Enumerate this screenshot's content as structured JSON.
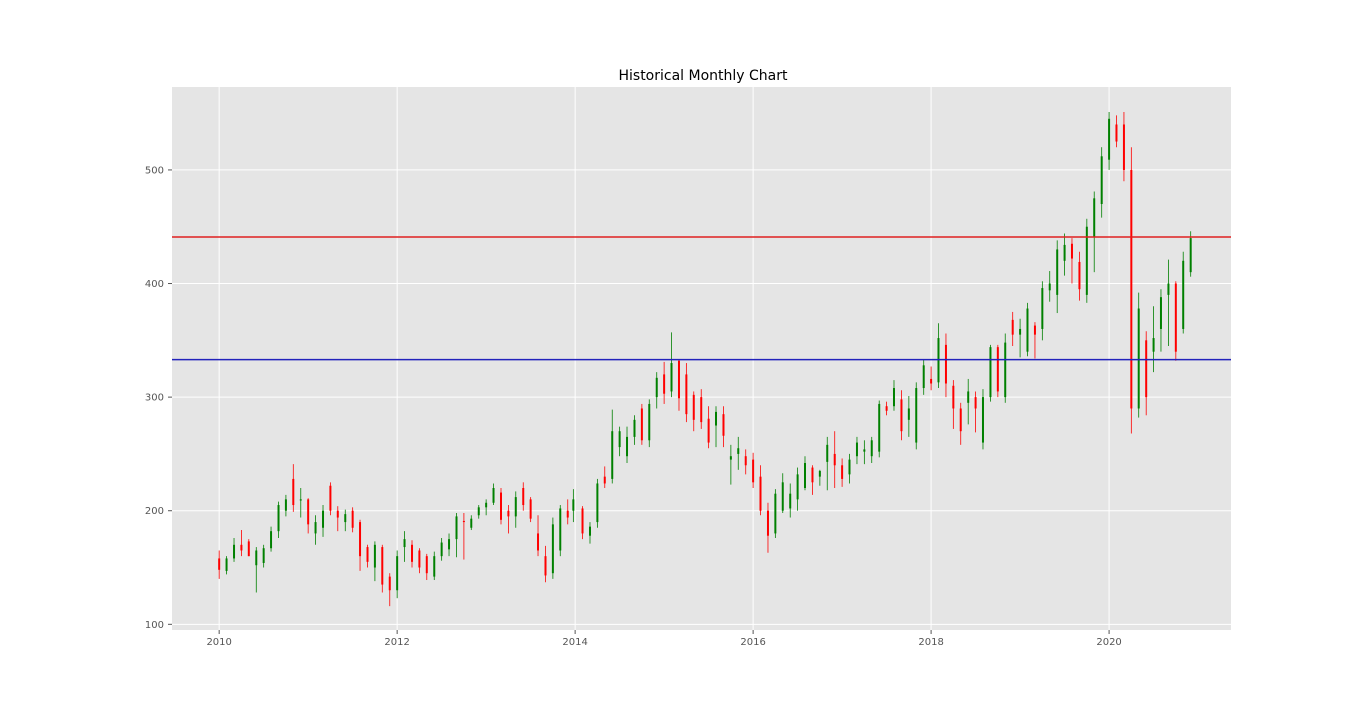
{
  "chart_data": {
    "type": "candlestick",
    "title": "Historical Monthly Chart",
    "xlabel": "",
    "ylabel": "",
    "xlim": [
      2009.47,
      2021.37
    ],
    "ylim": [
      95,
      573
    ],
    "grid": true,
    "x_ticks": [
      2010,
      2012,
      2014,
      2016,
      2018,
      2020
    ],
    "x_tick_labels": [
      "2010",
      "2012",
      "2014",
      "2016",
      "2018",
      "2020"
    ],
    "y_ticks": [
      100,
      200,
      300,
      400,
      500
    ],
    "y_tick_labels": [
      "100",
      "200",
      "300",
      "400",
      "500"
    ],
    "hlines": [
      {
        "y": 441,
        "color": "#e02020"
      },
      {
        "y": 333,
        "color": "#2222bb"
      }
    ],
    "colors": {
      "up": "#008000",
      "down": "#ff0000",
      "background": "#e5e5e5",
      "grid": "#ffffff"
    },
    "candles": [
      [
        2010.0,
        158,
        165,
        140,
        148
      ],
      [
        2010.083,
        147,
        160,
        144,
        158
      ],
      [
        2010.167,
        158,
        176,
        155,
        170
      ],
      [
        2010.25,
        170,
        183,
        160,
        165
      ],
      [
        2010.333,
        173,
        175,
        160,
        160
      ],
      [
        2010.417,
        152,
        168,
        128,
        165
      ],
      [
        2010.5,
        154,
        170,
        150,
        167
      ],
      [
        2010.583,
        167,
        186,
        164,
        182
      ],
      [
        2010.667,
        182,
        208,
        176,
        205
      ],
      [
        2010.75,
        200,
        214,
        195,
        210
      ],
      [
        2010.833,
        228,
        241,
        199,
        205
      ],
      [
        2010.917,
        209,
        220,
        194,
        210
      ],
      [
        2011.0,
        210,
        211,
        180,
        188
      ],
      [
        2011.083,
        180,
        196,
        170,
        190
      ],
      [
        2011.167,
        185,
        205,
        177,
        200
      ],
      [
        2011.25,
        222,
        225,
        196,
        200
      ],
      [
        2011.333,
        200,
        204,
        182,
        194
      ],
      [
        2011.417,
        190,
        201,
        182,
        197
      ],
      [
        2011.5,
        200,
        203,
        181,
        185
      ],
      [
        2011.583,
        190,
        192,
        147,
        160
      ],
      [
        2011.667,
        168,
        170,
        150,
        155
      ],
      [
        2011.75,
        150,
        173,
        138,
        170
      ],
      [
        2011.833,
        168,
        170,
        128,
        135
      ],
      [
        2011.917,
        142,
        145,
        116,
        130
      ],
      [
        2012.0,
        130,
        165,
        123,
        160
      ],
      [
        2012.083,
        168,
        182,
        155,
        175
      ],
      [
        2012.167,
        170,
        174,
        150,
        155
      ],
      [
        2012.25,
        165,
        167,
        145,
        150
      ],
      [
        2012.333,
        160,
        162,
        139,
        145
      ],
      [
        2012.417,
        142,
        164,
        139,
        160
      ],
      [
        2012.5,
        160,
        176,
        156,
        172
      ],
      [
        2012.583,
        166,
        180,
        160,
        175
      ],
      [
        2012.667,
        175,
        198,
        159,
        195
      ],
      [
        2012.75,
        191,
        198,
        157,
        190
      ],
      [
        2012.833,
        185,
        196,
        183,
        193
      ],
      [
        2012.917,
        196,
        205,
        193,
        203
      ],
      [
        2013.0,
        203,
        210,
        196,
        207
      ],
      [
        2013.083,
        207,
        224,
        205,
        220
      ],
      [
        2013.167,
        216,
        220,
        188,
        192
      ],
      [
        2013.25,
        200,
        205,
        180,
        195
      ],
      [
        2013.333,
        195,
        217,
        185,
        212
      ],
      [
        2013.417,
        220,
        225,
        200,
        205
      ],
      [
        2013.5,
        210,
        212,
        190,
        193
      ],
      [
        2013.583,
        180,
        196,
        160,
        165
      ],
      [
        2013.667,
        160,
        169,
        137,
        143
      ],
      [
        2013.75,
        145,
        194,
        140,
        188
      ],
      [
        2013.833,
        165,
        205,
        160,
        202
      ],
      [
        2013.917,
        200,
        210,
        188,
        194
      ],
      [
        2013.98,
        200,
        219,
        190,
        210
      ],
      [
        2014.083,
        202,
        204,
        175,
        180
      ],
      [
        2014.167,
        178,
        190,
        171,
        186
      ],
      [
        2014.25,
        190,
        228,
        185,
        224
      ],
      [
        2014.333,
        230,
        239,
        220,
        224
      ],
      [
        2014.417,
        228,
        289,
        224,
        270
      ],
      [
        2014.5,
        256,
        274,
        248,
        270
      ],
      [
        2014.583,
        248,
        274,
        242,
        265
      ],
      [
        2014.667,
        265,
        284,
        258,
        280
      ],
      [
        2014.75,
        290,
        294,
        258,
        262
      ],
      [
        2014.833,
        262,
        298,
        256,
        294
      ],
      [
        2014.917,
        300,
        322,
        290,
        317
      ],
      [
        2015.0,
        320,
        331,
        294,
        303
      ],
      [
        2015.083,
        305,
        357,
        300,
        330
      ],
      [
        2015.167,
        332,
        333,
        288,
        299
      ],
      [
        2015.25,
        320,
        330,
        278,
        285
      ],
      [
        2015.333,
        302,
        305,
        270,
        280
      ],
      [
        2015.417,
        300,
        307,
        272,
        278
      ],
      [
        2015.5,
        281,
        292,
        255,
        260
      ],
      [
        2015.583,
        275,
        292,
        256,
        287
      ],
      [
        2015.667,
        285,
        292,
        256,
        266
      ],
      [
        2015.75,
        245,
        258,
        223,
        248
      ],
      [
        2015.833,
        250,
        265,
        236,
        255
      ],
      [
        2015.917,
        248,
        254,
        232,
        240
      ],
      [
        2016.0,
        245,
        251,
        220,
        225
      ],
      [
        2016.083,
        230,
        240,
        196,
        200
      ],
      [
        2016.167,
        200,
        207,
        163,
        178
      ],
      [
        2016.25,
        180,
        219,
        176,
        215
      ],
      [
        2016.333,
        200,
        233,
        198,
        225
      ],
      [
        2016.417,
        202,
        224,
        194,
        215
      ],
      [
        2016.5,
        210,
        238,
        200,
        232
      ],
      [
        2016.583,
        220,
        248,
        218,
        242
      ],
      [
        2016.667,
        238,
        240,
        214,
        225
      ],
      [
        2016.75,
        230,
        236,
        222,
        235
      ],
      [
        2016.833,
        243,
        265,
        218,
        258
      ],
      [
        2016.917,
        250,
        270,
        220,
        240
      ],
      [
        2017.0,
        240,
        246,
        221,
        228
      ],
      [
        2017.083,
        232,
        250,
        224,
        245
      ],
      [
        2017.167,
        248,
        265,
        241,
        260
      ],
      [
        2017.25,
        252,
        262,
        241,
        254
      ],
      [
        2017.333,
        248,
        265,
        242,
        262
      ],
      [
        2017.417,
        252,
        297,
        247,
        294
      ],
      [
        2017.5,
        292,
        296,
        284,
        288
      ],
      [
        2017.583,
        292,
        315,
        288,
        308
      ],
      [
        2017.667,
        298,
        306,
        262,
        270
      ],
      [
        2017.75,
        280,
        301,
        265,
        290
      ],
      [
        2017.833,
        260,
        313,
        254,
        308
      ],
      [
        2017.917,
        308,
        333,
        302,
        328
      ],
      [
        2018.0,
        316,
        327,
        306,
        312
      ],
      [
        2018.083,
        313,
        365,
        308,
        352
      ],
      [
        2018.167,
        346,
        356,
        300,
        312
      ],
      [
        2018.25,
        310,
        315,
        272,
        290
      ],
      [
        2018.333,
        290,
        295,
        258,
        270
      ],
      [
        2018.417,
        295,
        316,
        276,
        305
      ],
      [
        2018.5,
        300,
        305,
        269,
        290
      ],
      [
        2018.583,
        260,
        307,
        254,
        300
      ],
      [
        2018.667,
        300,
        346,
        296,
        344
      ],
      [
        2018.75,
        344,
        346,
        300,
        305
      ],
      [
        2018.833,
        300,
        356,
        295,
        348
      ],
      [
        2018.917,
        368,
        375,
        345,
        355
      ],
      [
        2019.0,
        355,
        369,
        335,
        360
      ],
      [
        2019.083,
        340,
        383,
        336,
        378
      ],
      [
        2019.167,
        363,
        366,
        334,
        355
      ],
      [
        2019.25,
        360,
        402,
        350,
        396
      ],
      [
        2019.333,
        394,
        411,
        384,
        400
      ],
      [
        2019.417,
        390,
        438,
        374,
        430
      ],
      [
        2019.5,
        420,
        444,
        407,
        434
      ],
      [
        2019.583,
        435,
        440,
        400,
        422
      ],
      [
        2019.667,
        419,
        428,
        385,
        395
      ],
      [
        2019.75,
        390,
        457,
        383,
        450
      ],
      [
        2019.833,
        441,
        481,
        410,
        475
      ],
      [
        2019.917,
        470,
        520,
        458,
        512
      ],
      [
        2020.0,
        509,
        551,
        500,
        545
      ],
      [
        2020.083,
        540,
        548,
        520,
        525
      ],
      [
        2020.167,
        540,
        551,
        490,
        500
      ],
      [
        2020.25,
        500,
        520,
        268,
        290
      ],
      [
        2020.333,
        290,
        392,
        282,
        378
      ],
      [
        2020.417,
        350,
        358,
        284,
        300
      ],
      [
        2020.5,
        340,
        380,
        322,
        352
      ],
      [
        2020.583,
        360,
        395,
        340,
        388
      ],
      [
        2020.667,
        390,
        421,
        345,
        400
      ],
      [
        2020.75,
        400,
        402,
        332,
        340
      ],
      [
        2020.833,
        360,
        428,
        356,
        420
      ],
      [
        2020.917,
        410,
        446,
        406,
        440
      ]
    ]
  }
}
